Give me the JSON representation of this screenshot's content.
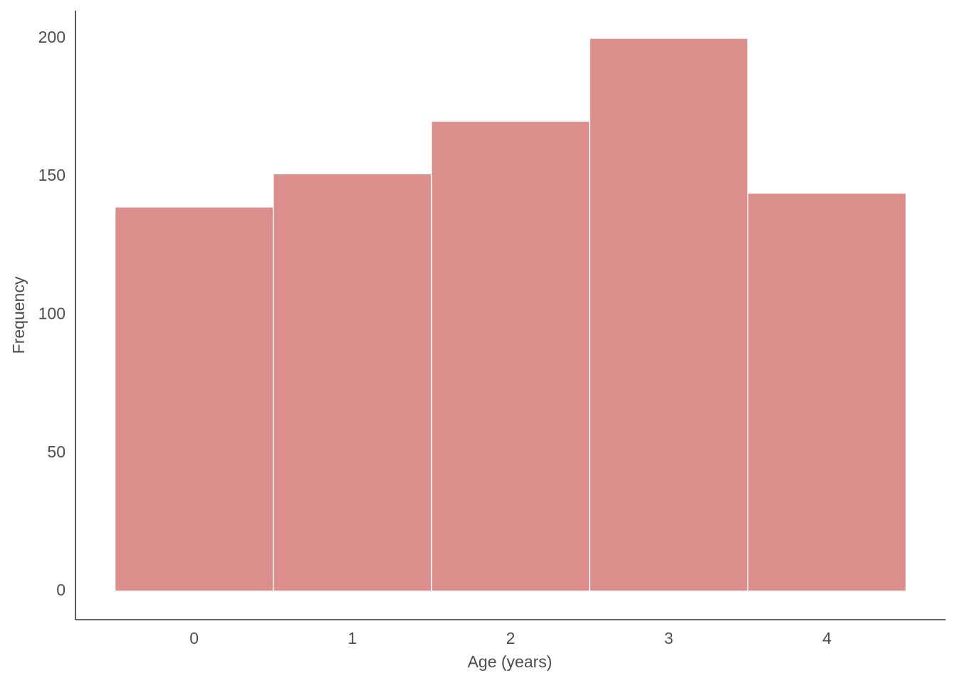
{
  "chart_data": {
    "type": "histogram",
    "x_label": "Age (years)",
    "y_label": "Frequency",
    "bins": [
      -0.5,
      0.5,
      1.5,
      2.5,
      3.5,
      4.5
    ],
    "values": [
      139,
      151,
      170,
      200,
      144
    ],
    "color": "#dc8e8c",
    "xlim": [
      -0.75,
      4.75
    ],
    "xticks": [
      0,
      1,
      2,
      3,
      4
    ],
    "ylim": [
      -10.3,
      210
    ],
    "yticks": [
      0,
      50,
      100,
      150,
      200
    ],
    "grid": false
  }
}
